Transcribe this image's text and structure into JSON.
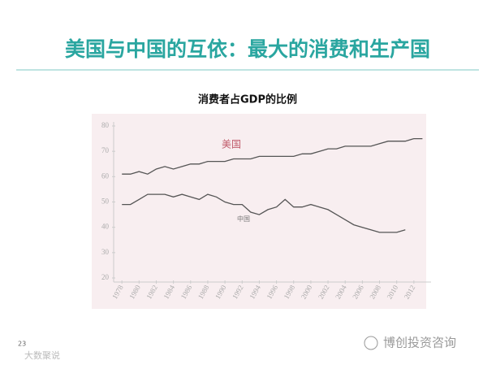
{
  "page_title": "美国与中国的互依：最大的消费和生产国",
  "page_number": "23",
  "watermark_left": "大数聚说",
  "watermark_right": "博创投资咨询",
  "chart_data": {
    "type": "line",
    "title": "消费者占GDP的比例",
    "x": [
      1978,
      1979,
      1980,
      1981,
      1982,
      1983,
      1984,
      1985,
      1986,
      1987,
      1988,
      1989,
      1990,
      1991,
      1992,
      1993,
      1994,
      1995,
      1996,
      1997,
      1998,
      1999,
      2000,
      2001,
      2002,
      2003,
      2004,
      2005,
      2006,
      2007,
      2008,
      2009,
      2010,
      2011,
      2012,
      2013
    ],
    "xlim": [
      1976,
      2014
    ],
    "xticks": [
      1978,
      1980,
      1982,
      1984,
      1986,
      1988,
      1990,
      1992,
      1994,
      1996,
      1998,
      2000,
      2002,
      2004,
      2006,
      2008,
      2010,
      2012
    ],
    "ylim": [
      20,
      80
    ],
    "yticks": [
      20,
      30,
      40,
      50,
      60,
      70,
      80
    ],
    "series": [
      {
        "name": "美国",
        "color": "#555555",
        "label_color": "#c05a6a",
        "values": [
          61,
          61,
          62,
          61,
          63,
          64,
          63,
          64,
          65,
          65,
          66,
          66,
          66,
          67,
          67,
          67,
          68,
          68,
          68,
          68,
          68,
          69,
          69,
          70,
          71,
          71,
          72,
          72,
          72,
          72,
          73,
          74,
          74,
          74,
          75,
          75
        ]
      },
      {
        "name": "中国",
        "color": "#555555",
        "label_color": "#777777",
        "values": [
          49,
          49,
          51,
          53,
          53,
          53,
          52,
          53,
          52,
          51,
          53,
          52,
          50,
          49,
          49,
          46,
          45,
          47,
          48,
          51,
          48,
          48,
          49,
          48,
          47,
          45,
          43,
          41,
          40,
          39,
          38,
          38,
          38,
          39,
          null,
          null
        ]
      }
    ]
  }
}
